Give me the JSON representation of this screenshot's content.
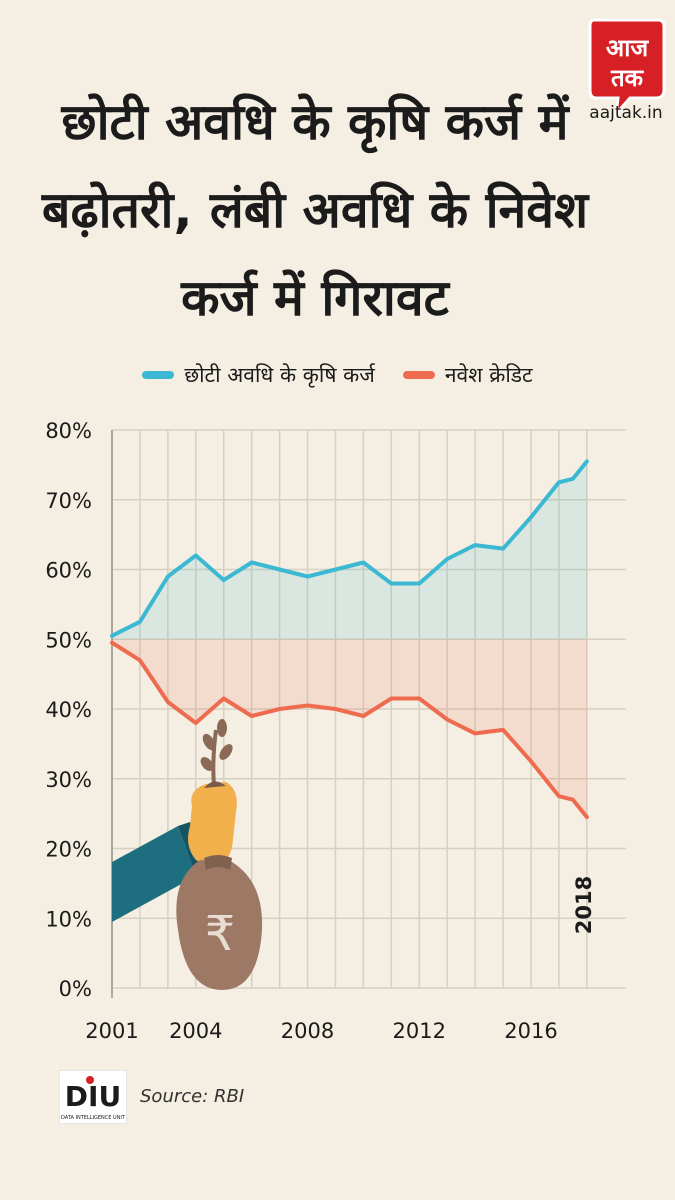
{
  "header": {
    "title": "छोटी अवधि के कृषि कर्ज में बढ़ोतरी, लंबी अवधि के निवेश कर्ज में गिरावट",
    "logo_text": "आज तक",
    "logo_url": "aajtak.in"
  },
  "footer": {
    "source": "Source: RBI",
    "diu_logo": "DIU",
    "diu_caption": "DATA INTELLIGENCE UNIT"
  },
  "colors": {
    "background": "#f4efe2",
    "series_short_term": "#3bb8d2",
    "series_investment": "#ee6b4f",
    "grid": "#d6d0c2",
    "brand_red": "#d71f26"
  },
  "chart_data": {
    "type": "line",
    "title": "छोटी अवधि के कृषि कर्ज में बढ़ोतरी, लंबी अवधि के निवेश कर्ज में गिरावट",
    "x": [
      2001,
      2002,
      2003,
      2004,
      2005,
      2006,
      2007,
      2008,
      2009,
      2010,
      2011,
      2012,
      2013,
      2014,
      2015,
      2016,
      2017,
      2018
    ],
    "series": [
      {
        "name": "छोटी अवधि के कृषि कर्ज",
        "color": "#3bb8d2",
        "values": [
          50.5,
          52.5,
          59,
          62,
          58.5,
          61,
          60,
          59,
          60,
          61,
          58,
          58,
          61.5,
          63.5,
          63,
          67.5,
          72.5,
          73,
          75.5
        ]
      },
      {
        "name": "नवेश क्रेडिट",
        "color": "#ee6b4f",
        "values": [
          49.5,
          47,
          41,
          38,
          41.5,
          39,
          40,
          40.5,
          40,
          39,
          41.5,
          41.5,
          38.5,
          36.5,
          37,
          32.5,
          27.5,
          27,
          24.5
        ]
      }
    ],
    "x_values": [
      2001,
      2002,
      2003,
      2004,
      2005,
      2006,
      2007,
      2008,
      2009,
      2010,
      2011,
      2012,
      2013,
      2014,
      2015,
      2016,
      2017,
      2017.5,
      2018
    ],
    "x_ticks": [
      "2001",
      "2004",
      "2008",
      "2012",
      "2016"
    ],
    "x_tick_values": [
      2001,
      2004,
      2008,
      2012,
      2016
    ],
    "end_label": "2018",
    "y_ticks": [
      "0%",
      "10%",
      "20%",
      "30%",
      "40%",
      "50%",
      "60%",
      "70%",
      "80%"
    ],
    "ylim": [
      0,
      80
    ],
    "xlim": [
      2001,
      2018.9
    ],
    "grid": true,
    "legend": "top"
  }
}
